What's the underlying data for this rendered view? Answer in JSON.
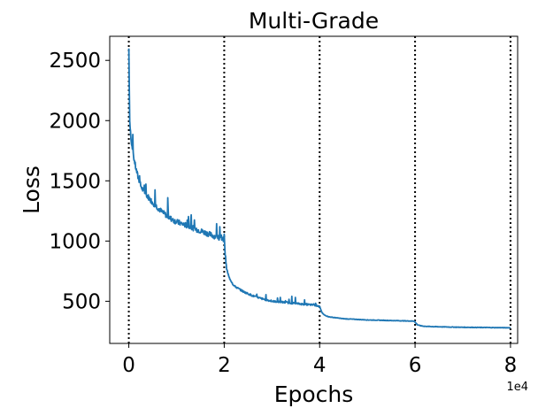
{
  "chart_data": {
    "type": "line",
    "title": "Multi-Grade",
    "xlabel": "Epochs",
    "ylabel": "Loss",
    "x_offset_label": "1e4",
    "xlim": [
      -0.4,
      8.15
    ],
    "ylim": [
      150,
      2700
    ],
    "x_ticks": [
      0,
      2,
      4,
      6,
      8
    ],
    "x_tick_labels": [
      "0",
      "2",
      "4",
      "6",
      "8"
    ],
    "y_ticks": [
      500,
      1000,
      1500,
      2000,
      2500
    ],
    "y_tick_labels": [
      "500",
      "1000",
      "1500",
      "2000",
      "2500"
    ],
    "grade_boundaries": [
      0,
      2,
      4,
      6,
      8
    ],
    "grid": false,
    "series": [
      {
        "color": "#1f77b4",
        "x": [
          0,
          0.02,
          0.05,
          0.1,
          0.15,
          0.2,
          0.25,
          0.3,
          0.4,
          0.5,
          0.6,
          0.7,
          0.8,
          0.9,
          1.0,
          1.2,
          1.4,
          1.6,
          1.8,
          1.99,
          2.0,
          2.02,
          2.05,
          2.1,
          2.2,
          2.4,
          2.6,
          2.8,
          3.0,
          3.3,
          3.6,
          3.9,
          3.99,
          4.0,
          4.05,
          4.1,
          4.2,
          4.5,
          5.0,
          5.5,
          5.99,
          6.0,
          6.05,
          6.1,
          6.2,
          6.5,
          7.0,
          7.5,
          8.0
        ],
        "y": [
          2600,
          2000,
          1820,
          1700,
          1600,
          1520,
          1460,
          1420,
          1370,
          1320,
          1280,
          1240,
          1210,
          1180,
          1160,
          1130,
          1100,
          1070,
          1040,
          1010,
          1060,
          880,
          770,
          700,
          630,
          580,
          545,
          520,
          500,
          490,
          478,
          468,
          460,
          455,
          405,
          385,
          370,
          355,
          345,
          340,
          335,
          325,
          305,
          298,
          292,
          288,
          284,
          282,
          280
        ]
      }
    ]
  }
}
